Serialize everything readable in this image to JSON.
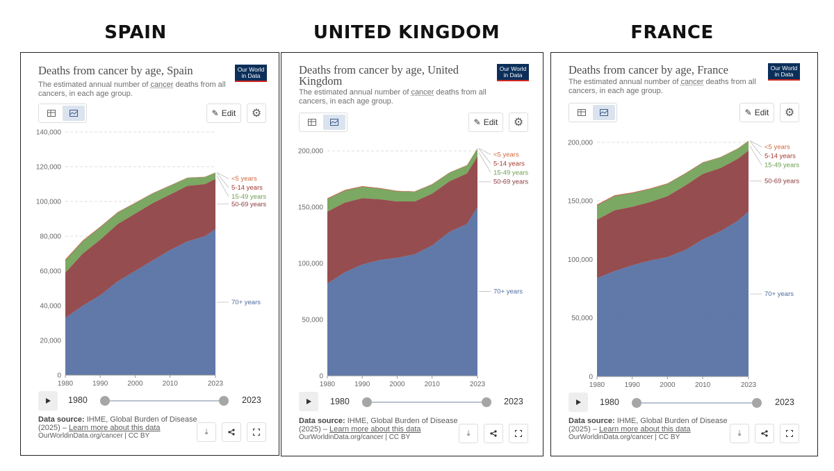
{
  "labels": [
    "SPAIN",
    "UNITED KINGDOM",
    "FRANCE"
  ],
  "colors": {
    "u5": "#d0683b",
    "a514": "#a2392d",
    "a1549": "#6d9e51",
    "a5069": "#8b3a3c",
    "a70": "#4f6aa0"
  },
  "panels": [
    {
      "title": "Deaths from cancer by age, Spain",
      "subtitle_pre": "The estimated annual number of ",
      "subtitle_link": "cancer",
      "subtitle_post": " deaths from all cancers, in each age group.",
      "logo_line1": "Our World",
      "logo_line2": "in Data",
      "edit_label": "Edit",
      "play_start": "1980",
      "play_end": "2023",
      "source_label": "Data source:",
      "source_text": " IHME, Global Burden of Disease (2025) – ",
      "source_link": "Learn more about this data",
      "source_url": "OurWorldinData.org/cancer | CC BY"
    },
    {
      "title": "Deaths from cancer by age, United Kingdom",
      "subtitle_pre": "The estimated annual number of ",
      "subtitle_link": "cancer",
      "subtitle_post": " deaths from all cancers, in each age group.",
      "logo_line1": "Our World",
      "logo_line2": "in Data",
      "edit_label": "Edit",
      "play_start": "1980",
      "play_end": "2023",
      "source_label": "Data source:",
      "source_text": " IHME, Global Burden of Disease (2025) – ",
      "source_link": "Learn more about this data",
      "source_url": "OurWorldinData.org/cancer | CC BY"
    },
    {
      "title": "Deaths from cancer by age, France",
      "subtitle_pre": "The estimated annual number of ",
      "subtitle_link": "cancer",
      "subtitle_post": " deaths from all cancers, in each age group.",
      "logo_line1": "Our World",
      "logo_line2": "in Data",
      "edit_label": "Edit",
      "play_start": "1980",
      "play_end": "2023",
      "source_label": "Data source:",
      "source_text": " IHME, Global Burden of Disease (2025) – ",
      "source_link": "Learn more about this data",
      "source_url": "OurWorldinData.org/cancer | CC BY"
    }
  ],
  "chart_data": [
    {
      "type": "area",
      "title": "Deaths from cancer by age, Spain",
      "stacked": true,
      "x": [
        1980,
        1985,
        1990,
        1995,
        2000,
        2005,
        2010,
        2015,
        2020,
        2023
      ],
      "xticks": [
        "1980",
        "1990",
        "2000",
        "2010",
        "2023"
      ],
      "yticks": [
        "0",
        "20,000",
        "40,000",
        "60,000",
        "80,000",
        "100,000",
        "120,000",
        "140,000"
      ],
      "ylim": [
        0,
        140000
      ],
      "series": [
        {
          "name": "70+ years",
          "values": [
            33000,
            40000,
            46000,
            54000,
            60000,
            66000,
            72000,
            77000,
            80000,
            84000
          ]
        },
        {
          "name": "50-69 years",
          "values": [
            26000,
            30000,
            32000,
            33000,
            33000,
            33000,
            32000,
            32000,
            30000,
            29000
          ]
        },
        {
          "name": "15-49 years",
          "values": [
            7000,
            7000,
            7000,
            6500,
            6000,
            5500,
            5000,
            4500,
            4000,
            3500
          ]
        },
        {
          "name": "5-14 years",
          "values": [
            400,
            350,
            300,
            250,
            200,
            200,
            180,
            170,
            150,
            150
          ]
        },
        {
          "name": "<5 years",
          "values": [
            300,
            250,
            200,
            150,
            120,
            100,
            90,
            80,
            70,
            60
          ]
        }
      ]
    },
    {
      "type": "area",
      "title": "Deaths from cancer by age, United Kingdom",
      "stacked": true,
      "x": [
        1980,
        1985,
        1990,
        1995,
        2000,
        2005,
        2010,
        2015,
        2020,
        2023
      ],
      "xticks": [
        "1980",
        "1990",
        "2000",
        "2010",
        "2023"
      ],
      "yticks": [
        "0",
        "50,000",
        "100,000",
        "150,000",
        "200,000"
      ],
      "ylim": [
        0,
        210000
      ],
      "series": [
        {
          "name": "70+ years",
          "values": [
            82000,
            92000,
            99000,
            103000,
            105000,
            108000,
            116000,
            128000,
            135000,
            150000
          ]
        },
        {
          "name": "50-69 years",
          "values": [
            64000,
            62000,
            59000,
            54000,
            50000,
            47000,
            46000,
            45000,
            45000,
            45000
          ]
        },
        {
          "name": "15-49 years",
          "values": [
            11000,
            10500,
            10000,
            9500,
            9000,
            8500,
            8000,
            7500,
            7000,
            7000
          ]
        },
        {
          "name": "5-14 years",
          "values": [
            500,
            450,
            400,
            350,
            300,
            300,
            280,
            260,
            250,
            250
          ]
        },
        {
          "name": "<5 years",
          "values": [
            400,
            350,
            300,
            250,
            200,
            180,
            160,
            150,
            140,
            130
          ]
        }
      ]
    },
    {
      "type": "area",
      "title": "Deaths from cancer by age, France",
      "stacked": true,
      "x": [
        1980,
        1985,
        1990,
        1995,
        2000,
        2005,
        2010,
        2015,
        2020,
        2023
      ],
      "xticks": [
        "1980",
        "1990",
        "2000",
        "2010",
        "2023"
      ],
      "yticks": [
        "0",
        "50,000",
        "100,000",
        "150,000",
        "200,000"
      ],
      "ylim": [
        0,
        210000
      ],
      "series": [
        {
          "name": "70+ years",
          "values": [
            84000,
            90000,
            95000,
            99000,
            102000,
            108000,
            117000,
            124000,
            133000,
            141000
          ]
        },
        {
          "name": "50-69 years",
          "values": [
            50000,
            52000,
            50000,
            50000,
            52000,
            55000,
            56000,
            54000,
            53000,
            52000
          ]
        },
        {
          "name": "15-49 years",
          "values": [
            12000,
            12000,
            11500,
            11000,
            10500,
            10000,
            9500,
            9000,
            8500,
            8000
          ]
        },
        {
          "name": "5-14 years",
          "values": [
            500,
            450,
            400,
            350,
            300,
            280,
            260,
            250,
            240,
            230
          ]
        },
        {
          "name": "<5 years",
          "values": [
            400,
            350,
            300,
            250,
            220,
            200,
            180,
            170,
            160,
            150
          ]
        }
      ]
    }
  ]
}
